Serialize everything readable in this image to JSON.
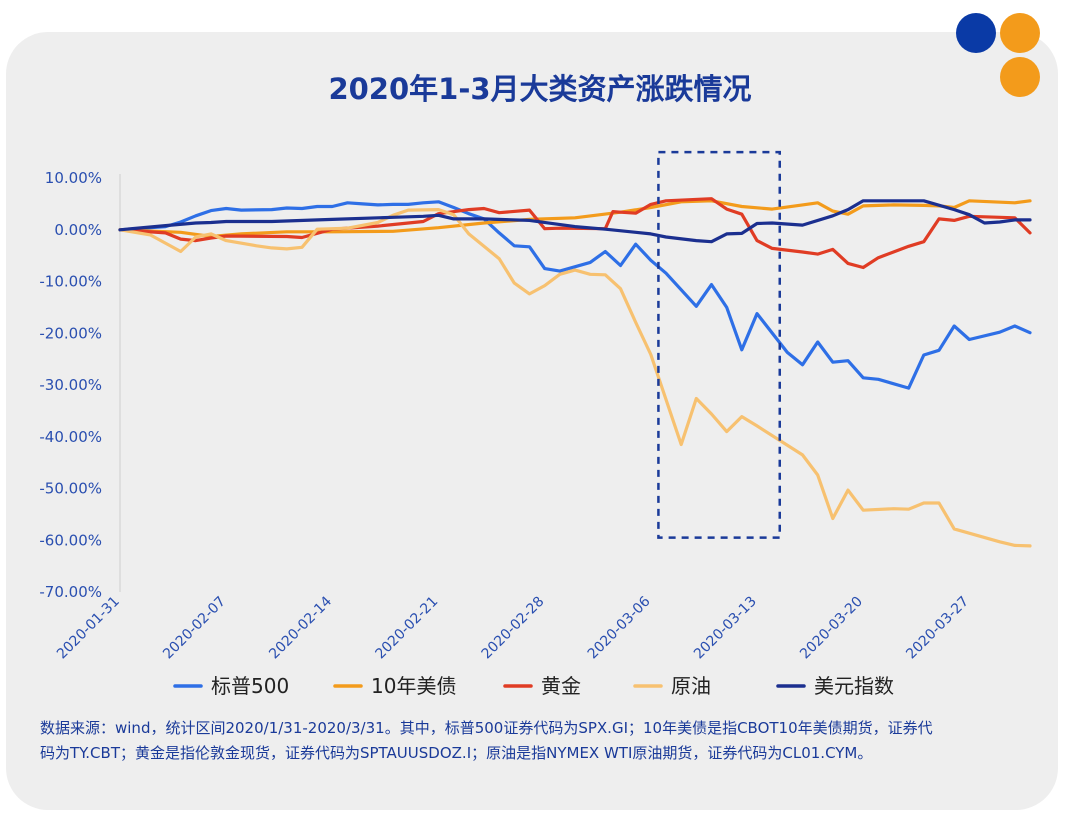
{
  "decor": {
    "dot_colors": [
      "#0a3aa6",
      "#f39b1b",
      "#f39b1b"
    ]
  },
  "chart_data": {
    "type": "line",
    "title": "2020年1-3月大类资产涨跌情况",
    "xlabel": "",
    "ylabel": "",
    "ylim": [
      -70,
      10
    ],
    "y_ticks": [
      10,
      0,
      -10,
      -20,
      -30,
      -40,
      -50,
      -60,
      -70
    ],
    "y_tick_labels": [
      "10.00%",
      "0.00%",
      "-10.00%",
      "-20.00%",
      "-30.00%",
      "-40.00%",
      "-50.00%",
      "-60.00%",
      "-70.00%"
    ],
    "x_range": [
      0,
      60
    ],
    "x_ticks": [
      0,
      7,
      14,
      21,
      28,
      35,
      42,
      49,
      56
    ],
    "x_tick_labels": [
      "2020-01-31",
      "2020-02-07",
      "2020-02-14",
      "2020-02-21",
      "2020-02-28",
      "2020-03-06",
      "2020-03-13",
      "2020-03-20",
      "2020-03-27"
    ],
    "highlight": {
      "x_start": 35.5,
      "x_end": 43.5,
      "y_top": 15,
      "y_bottom": -59.5,
      "style": "dashed",
      "color": "#1a3a99"
    },
    "series": [
      {
        "name": "标普500",
        "color": "#2e6fe6",
        "points": [
          [
            0,
            0
          ],
          [
            3,
            0.6
          ],
          [
            4,
            1.5
          ],
          [
            5,
            2.7
          ],
          [
            6,
            3.7
          ],
          [
            7,
            4.1
          ],
          [
            8,
            3.8
          ],
          [
            10,
            3.9
          ],
          [
            11,
            4.2
          ],
          [
            12,
            4.1
          ],
          [
            13,
            4.5
          ],
          [
            14,
            4.5
          ],
          [
            15,
            5.2
          ],
          [
            16,
            5.0
          ],
          [
            17,
            4.8
          ],
          [
            18,
            4.9
          ],
          [
            19,
            4.9
          ],
          [
            20,
            5.2
          ],
          [
            21,
            5.4
          ],
          [
            22,
            4.3
          ],
          [
            23,
            3.1
          ],
          [
            24,
            2.1
          ],
          [
            25,
            -0.6
          ],
          [
            26,
            -3.1
          ],
          [
            27,
            -3.3
          ],
          [
            28,
            -7.5
          ],
          [
            29,
            -8.0
          ],
          [
            31,
            -6.3
          ],
          [
            32,
            -4.2
          ],
          [
            33,
            -6.9
          ],
          [
            34,
            -2.8
          ],
          [
            35,
            -5.9
          ],
          [
            36,
            -8.4
          ],
          [
            38,
            -14.8
          ],
          [
            39,
            -10.6
          ],
          [
            40,
            -15.0
          ],
          [
            41,
            -23.2
          ],
          [
            42,
            -16.2
          ],
          [
            44,
            -23.7
          ],
          [
            45,
            -26.1
          ],
          [
            46,
            -21.7
          ],
          [
            47,
            -25.6
          ],
          [
            48,
            -25.3
          ],
          [
            49,
            -28.6
          ],
          [
            50,
            -28.9
          ],
          [
            52,
            -30.6
          ],
          [
            53,
            -24.2
          ],
          [
            54,
            -23.3
          ],
          [
            55,
            -18.6
          ],
          [
            56,
            -21.2
          ],
          [
            58,
            -19.8
          ],
          [
            59,
            -18.6
          ],
          [
            60,
            -19.9
          ]
        ]
      },
      {
        "name": "10年美债",
        "color": "#f39b1b",
        "points": [
          [
            0,
            0
          ],
          [
            4,
            -0.5
          ],
          [
            6,
            -1.3
          ],
          [
            8,
            -0.8
          ],
          [
            11,
            -0.4
          ],
          [
            14,
            -0.4
          ],
          [
            18,
            -0.3
          ],
          [
            21,
            0.4
          ],
          [
            24,
            1.3
          ],
          [
            27,
            2.0
          ],
          [
            30,
            2.3
          ],
          [
            33,
            3.4
          ],
          [
            35,
            4.3
          ],
          [
            37,
            5.4
          ],
          [
            39,
            5.6
          ],
          [
            41,
            4.5
          ],
          [
            43,
            4.0
          ],
          [
            45,
            4.8
          ],
          [
            46,
            5.2
          ],
          [
            47,
            3.6
          ],
          [
            48,
            3.0
          ],
          [
            49,
            4.6
          ],
          [
            51,
            4.8
          ],
          [
            53,
            4.7
          ],
          [
            54,
            4.6
          ],
          [
            55,
            4.3
          ],
          [
            56,
            5.6
          ],
          [
            59,
            5.2
          ],
          [
            60,
            5.6
          ]
        ]
      },
      {
        "name": "黄金",
        "color": "#e03c24",
        "points": [
          [
            0,
            0
          ],
          [
            3,
            -0.6
          ],
          [
            4,
            -1.8
          ],
          [
            5,
            -2.1
          ],
          [
            6,
            -1.6
          ],
          [
            7,
            -1.2
          ],
          [
            11,
            -1.3
          ],
          [
            12,
            -1.5
          ],
          [
            14,
            0.1
          ],
          [
            17,
            0.7
          ],
          [
            20,
            1.6
          ],
          [
            21,
            3.1
          ],
          [
            23,
            3.9
          ],
          [
            24,
            4.1
          ],
          [
            25,
            3.3
          ],
          [
            27,
            3.8
          ],
          [
            28,
            0.2
          ],
          [
            29,
            0.3
          ],
          [
            32,
            0.2
          ],
          [
            32.5,
            3.5
          ],
          [
            33,
            3.4
          ],
          [
            34,
            3.2
          ],
          [
            35,
            4.9
          ],
          [
            36,
            5.6
          ],
          [
            39,
            6.0
          ],
          [
            40,
            4.0
          ],
          [
            41,
            3.0
          ],
          [
            42,
            -2.1
          ],
          [
            43,
            -3.6
          ],
          [
            45,
            -4.3
          ],
          [
            46,
            -4.7
          ],
          [
            47,
            -3.8
          ],
          [
            48,
            -6.5
          ],
          [
            49,
            -7.3
          ],
          [
            50,
            -5.4
          ],
          [
            52,
            -3.2
          ],
          [
            53,
            -2.3
          ],
          [
            54,
            2.1
          ],
          [
            55,
            1.8
          ],
          [
            56,
            2.6
          ],
          [
            57,
            2.5
          ],
          [
            59,
            2.3
          ],
          [
            60,
            -0.6
          ]
        ]
      },
      {
        "name": "原油",
        "color": "#f7c170",
        "points": [
          [
            0,
            0
          ],
          [
            2,
            -1.0
          ],
          [
            4,
            -4.2
          ],
          [
            5,
            -1.4
          ],
          [
            6,
            -0.8
          ],
          [
            7,
            -2.1
          ],
          [
            9,
            -3.1
          ],
          [
            10,
            -3.5
          ],
          [
            11,
            -3.7
          ],
          [
            12,
            -3.4
          ],
          [
            13,
            0.1
          ],
          [
            15,
            0.3
          ],
          [
            17,
            1.4
          ],
          [
            18,
            2.8
          ],
          [
            19,
            3.8
          ],
          [
            21,
            3.9
          ],
          [
            22,
            2.9
          ],
          [
            23,
            -0.8
          ],
          [
            25,
            -5.6
          ],
          [
            26,
            -10.3
          ],
          [
            27,
            -12.4
          ],
          [
            28,
            -10.8
          ],
          [
            29,
            -8.6
          ],
          [
            30,
            -7.8
          ],
          [
            31,
            -8.6
          ],
          [
            32,
            -8.7
          ],
          [
            33,
            -11.4
          ],
          [
            34,
            -17.9
          ],
          [
            35,
            -24.1
          ],
          [
            37,
            -41.5
          ],
          [
            38,
            -32.6
          ],
          [
            39,
            -35.6
          ],
          [
            40,
            -39.0
          ],
          [
            41,
            -36.1
          ],
          [
            42,
            -37.9
          ],
          [
            45,
            -43.5
          ],
          [
            46,
            -47.4
          ],
          [
            47,
            -55.8
          ],
          [
            48,
            -50.3
          ],
          [
            49,
            -54.2
          ],
          [
            51,
            -53.9
          ],
          [
            52,
            -54.0
          ],
          [
            53,
            -52.8
          ],
          [
            54,
            -52.8
          ],
          [
            55,
            -57.8
          ],
          [
            58,
            -60.3
          ],
          [
            59,
            -61.0
          ],
          [
            60,
            -61.1
          ]
        ]
      },
      {
        "name": "美元指数",
        "color": "#1b2f8f",
        "points": [
          [
            0,
            0
          ],
          [
            3,
            0.8
          ],
          [
            5,
            1.3
          ],
          [
            6,
            1.4
          ],
          [
            7,
            1.6
          ],
          [
            10,
            1.6
          ],
          [
            14,
            2.0
          ],
          [
            18,
            2.4
          ],
          [
            20,
            2.6
          ],
          [
            21,
            2.8
          ],
          [
            22,
            2.1
          ],
          [
            24,
            2.1
          ],
          [
            27,
            1.8
          ],
          [
            30,
            0.6
          ],
          [
            32,
            0.1
          ],
          [
            34,
            -0.5
          ],
          [
            35,
            -0.8
          ],
          [
            36,
            -1.4
          ],
          [
            38,
            -2.1
          ],
          [
            39,
            -2.3
          ],
          [
            40,
            -0.8
          ],
          [
            41,
            -0.7
          ],
          [
            42,
            1.2
          ],
          [
            43,
            1.3
          ],
          [
            45,
            0.9
          ],
          [
            47,
            2.7
          ],
          [
            48,
            3.9
          ],
          [
            49,
            5.6
          ],
          [
            51,
            5.6
          ],
          [
            53,
            5.6
          ],
          [
            55,
            3.9
          ],
          [
            56,
            2.9
          ],
          [
            57,
            1.3
          ],
          [
            58,
            1.5
          ],
          [
            59,
            1.9
          ],
          [
            60,
            1.9
          ]
        ]
      }
    ]
  },
  "footnote": {
    "line1": "数据来源：wind，统计区间2020/1/31-2020/3/31。其中，标普500证券代码为SPX.GI；10年美债是指CBOT10年美债期货，证券代",
    "line2": "码为TY.CBT；黄金是指伦敦金现货，证券代码为SPTAUUSDOZ.I；原油是指NYMEX WTI原油期货，证券代码为CL01.CYM。"
  }
}
